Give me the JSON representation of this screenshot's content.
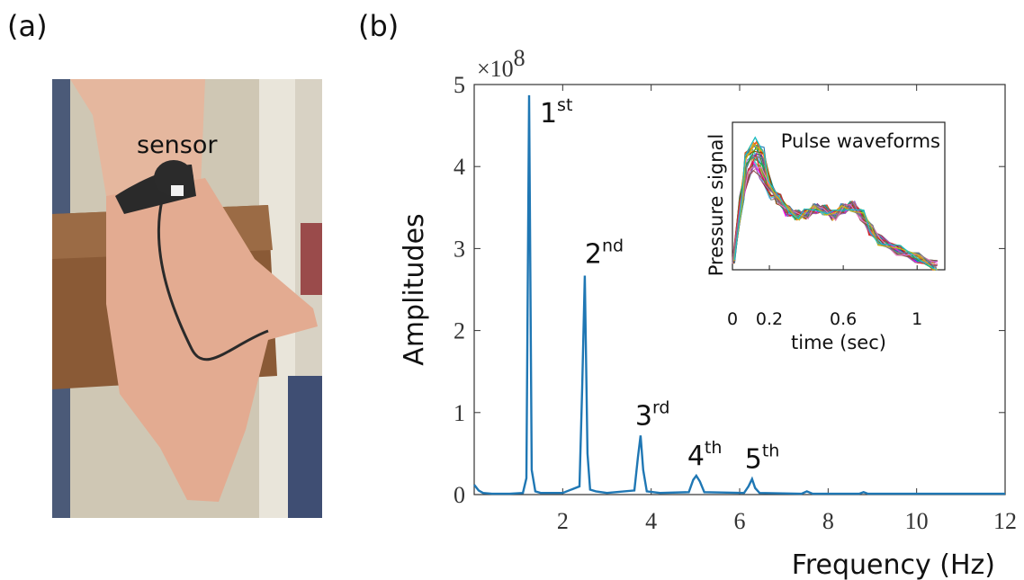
{
  "panels": {
    "a_label": "(a)",
    "b_label": "(b)"
  },
  "photo": {
    "annotation": "sensor"
  },
  "chart_data": {
    "type": "line",
    "xlabel": "Frequency (Hz)",
    "ylabel": "Amplitudes",
    "xlim": [
      0,
      12
    ],
    "ylim": [
      0,
      5
    ],
    "y_multiplier": "×10",
    "y_exponent": "8",
    "xticks": [
      2,
      4,
      6,
      8,
      10,
      12
    ],
    "yticks": [
      0,
      1,
      2,
      3,
      4,
      5
    ],
    "color": "#1f77b4",
    "x": [
      0.0,
      0.1,
      0.2,
      0.4,
      0.8,
      1.1,
      1.18,
      1.24,
      1.3,
      1.38,
      1.5,
      2.0,
      2.38,
      2.44,
      2.5,
      2.56,
      2.62,
      2.75,
      3.0,
      3.62,
      3.7,
      3.76,
      3.82,
      3.9,
      4.2,
      4.85,
      4.95,
      5.02,
      5.1,
      5.2,
      6.1,
      6.2,
      6.28,
      6.35,
      6.45,
      7.4,
      7.52,
      7.65,
      8.7,
      8.8,
      8.9,
      10.0,
      12.0
    ],
    "y": [
      0.12,
      0.05,
      0.02,
      0.01,
      0.01,
      0.02,
      0.2,
      4.87,
      0.3,
      0.04,
      0.02,
      0.02,
      0.1,
      1.3,
      2.67,
      0.5,
      0.06,
      0.04,
      0.02,
      0.05,
      0.45,
      0.72,
      0.3,
      0.04,
      0.02,
      0.03,
      0.18,
      0.23,
      0.16,
      0.03,
      0.02,
      0.1,
      0.19,
      0.08,
      0.02,
      0.01,
      0.04,
      0.01,
      0.01,
      0.03,
      0.01,
      0.01,
      0.01
    ],
    "peaks": [
      {
        "num": "1",
        "sup": "st",
        "x": 1.24,
        "y": 4.87
      },
      {
        "num": "2",
        "sup": "nd",
        "x": 2.5,
        "y": 2.67
      },
      {
        "num": "3",
        "sup": "rd",
        "x": 3.76,
        "y": 0.72
      },
      {
        "num": "4",
        "sup": "th",
        "x": 5.02,
        "y": 0.23
      },
      {
        "num": "5",
        "sup": "th",
        "x": 6.28,
        "y": 0.19
      }
    ],
    "inset": {
      "title": "Pulse waveforms",
      "xlabel": "time (sec)",
      "ylabel": "Pressure signal",
      "xlim": [
        0,
        1.15
      ],
      "xticks": [
        0,
        0.2,
        0.6,
        1
      ],
      "xtick_labels": [
        "0",
        "0.2",
        "0.6",
        "1"
      ],
      "n_waveforms": 30,
      "base_waveform": {
        "t": [
          0.0,
          0.05,
          0.08,
          0.12,
          0.16,
          0.2,
          0.25,
          0.3,
          0.35,
          0.4,
          0.45,
          0.5,
          0.55,
          0.6,
          0.65,
          0.7,
          0.75,
          0.8,
          0.9,
          1.0,
          1.1
        ],
        "v": [
          0.05,
          0.55,
          0.9,
          1.0,
          0.92,
          0.72,
          0.55,
          0.45,
          0.42,
          0.43,
          0.47,
          0.46,
          0.42,
          0.47,
          0.49,
          0.42,
          0.3,
          0.22,
          0.14,
          0.08,
          0.02
        ]
      },
      "colors": [
        "#1f77b4",
        "#ff7f0e",
        "#2ca02c",
        "#d62728",
        "#9467bd",
        "#8c564b",
        "#e377c2",
        "#7f7f7f",
        "#bcbd22",
        "#17becf",
        "#0072bd",
        "#d95319",
        "#edb120",
        "#7e2f8e",
        "#77ac30",
        "#4dbeee",
        "#a2142f",
        "#ff00ff",
        "#00aa88",
        "#884400"
      ]
    }
  }
}
